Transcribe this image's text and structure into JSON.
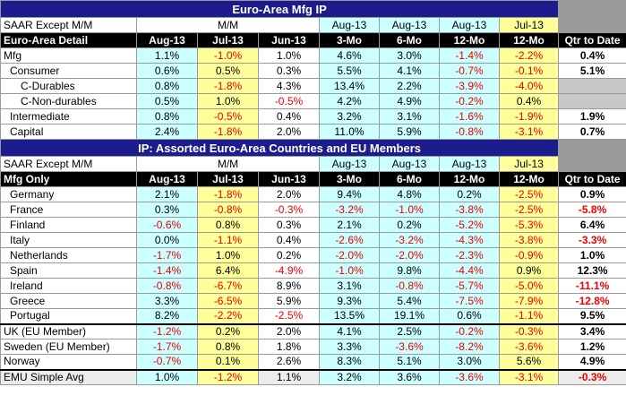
{
  "section1": {
    "title": "Euro-Area Mfg IP",
    "sub_label": "SAAR Except M/M",
    "sub_groups": [
      "M/M",
      "Aug-13",
      "Aug-13",
      "Aug-13",
      "Jul-13"
    ],
    "detail_label": "Euro-Area Detail",
    "columns": [
      "Aug-13",
      "Jul-13",
      "Jun-13",
      "3-Mo",
      "6-Mo",
      "12-Mo",
      "12-Mo",
      "Qtr to Date"
    ],
    "rows": [
      {
        "label": "Mfg",
        "values": [
          "1.1%",
          "-1.0%",
          "1.0%",
          "4.6%",
          "3.0%",
          "-1.4%",
          "-2.2%",
          "0.4%"
        ]
      },
      {
        "label": "Consumer",
        "values": [
          "0.6%",
          "0.5%",
          "0.3%",
          "5.5%",
          "4.1%",
          "-0.7%",
          "-0.1%",
          "5.1%"
        ]
      },
      {
        "label": "C-Durables",
        "values": [
          "0.8%",
          "-1.8%",
          "4.3%",
          "13.4%",
          "2.2%",
          "-3.9%",
          "-4.0%",
          ""
        ]
      },
      {
        "label": "C-Non-durables",
        "values": [
          "0.5%",
          "1.0%",
          "-0.5%",
          "4.2%",
          "4.9%",
          "-0.2%",
          "0.4%",
          ""
        ]
      },
      {
        "label": "Intermediate",
        "values": [
          "0.8%",
          "-0.5%",
          "0.4%",
          "3.2%",
          "3.1%",
          "-1.6%",
          "-1.9%",
          "1.9%"
        ]
      },
      {
        "label": "Capital",
        "values": [
          "2.4%",
          "-1.8%",
          "2.0%",
          "11.0%",
          "5.9%",
          "-0.8%",
          "-3.1%",
          "0.7%"
        ]
      }
    ]
  },
  "section2": {
    "title": "IP: Assorted Euro-Area Countries and EU Members",
    "sub_label": "SAAR Except M/M",
    "sub_groups": [
      "M/M",
      "Aug-13",
      "Aug-13",
      "Aug-13",
      "Jul-13"
    ],
    "detail_label": "Mfg Only",
    "columns": [
      "Aug-13",
      "Jul-13",
      "Jun-13",
      "3-Mo",
      "6-Mo",
      "12-Mo",
      "12-Mo",
      "Qtr to Date"
    ],
    "rows": [
      {
        "label": "Germany",
        "values": [
          "2.1%",
          "-1.8%",
          "2.0%",
          "9.4%",
          "4.8%",
          "0.2%",
          "-2.5%",
          "0.9%"
        ]
      },
      {
        "label": "France",
        "values": [
          "0.3%",
          "-0.8%",
          "-0.3%",
          "-3.2%",
          "-1.0%",
          "-3.8%",
          "-2.5%",
          "-5.8%"
        ]
      },
      {
        "label": "Finland",
        "values": [
          "-0.6%",
          "0.8%",
          "0.3%",
          "2.1%",
          "0.2%",
          "-5.2%",
          "-5.3%",
          "6.4%"
        ]
      },
      {
        "label": "Italy",
        "values": [
          "0.0%",
          "-1.1%",
          "0.4%",
          "-2.6%",
          "-3.2%",
          "-4.3%",
          "-3.8%",
          "-3.3%"
        ]
      },
      {
        "label": "Netherlands",
        "values": [
          "-1.7%",
          "1.0%",
          "0.2%",
          "-2.0%",
          "-2.0%",
          "-2.3%",
          "-0.9%",
          "1.0%"
        ]
      },
      {
        "label": "Spain",
        "values": [
          "-1.4%",
          "6.4%",
          "-4.9%",
          "-1.0%",
          "9.8%",
          "-4.4%",
          "0.9%",
          "12.3%"
        ]
      },
      {
        "label": "Ireland",
        "values": [
          "-0.8%",
          "-6.7%",
          "8.9%",
          "3.1%",
          "-0.8%",
          "-5.7%",
          "-5.0%",
          "-11.1%"
        ]
      },
      {
        "label": "Greece",
        "values": [
          "3.3%",
          "-6.5%",
          "5.9%",
          "9.3%",
          "5.4%",
          "-7.5%",
          "-7.9%",
          "-12.8%"
        ]
      },
      {
        "label": "Portugal",
        "values": [
          "8.2%",
          "-2.2%",
          "-2.5%",
          "13.5%",
          "19.1%",
          "0.6%",
          "-1.1%",
          "9.5%"
        ]
      }
    ],
    "eu_rows": [
      {
        "label": "UK (EU Member)",
        "values": [
          "-1.2%",
          "0.2%",
          "2.0%",
          "4.1%",
          "2.5%",
          "-0.2%",
          "-0.3%",
          "3.4%"
        ]
      },
      {
        "label": "Sweden (EU Member)",
        "values": [
          "-1.7%",
          "0.8%",
          "1.8%",
          "3.3%",
          "-3.6%",
          "-8.2%",
          "-3.6%",
          "1.2%"
        ]
      },
      {
        "label": "Norway",
        "values": [
          "-0.7%",
          "0.1%",
          "2.6%",
          "8.3%",
          "5.1%",
          "3.0%",
          "5.6%",
          "4.9%"
        ]
      }
    ],
    "emu": {
      "label": "EMU Simple Avg",
      "values": [
        "1.0%",
        "-1.2%",
        "1.1%",
        "3.2%",
        "3.6%",
        "-3.6%",
        "-3.1%",
        "-0.3%"
      ]
    }
  },
  "colors": {
    "title_bar": "#1c1c8c",
    "cyan": "#ccffff",
    "yellow": "#ffff99",
    "gray": "#9a9a9a",
    "negative": "#ee0000"
  }
}
